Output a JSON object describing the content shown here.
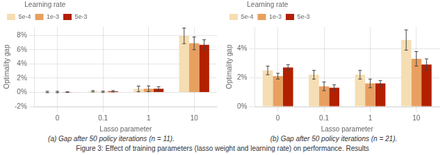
{
  "chart_data": [
    {
      "type": "bar",
      "subtitle": "(a) Gap after 50 policy iterations (n = 11).",
      "xlabel": "Lasso parameter",
      "ylabel": "Optimality gap",
      "categories": [
        "0",
        "0.1",
        "1",
        "10"
      ],
      "series": [
        {
          "name": "5e-4",
          "color": "#F5DEB3",
          "values": [
            0.0005,
            0.0015,
            0.0048,
            0.0795
          ],
          "errors": [
            0.001,
            0.001,
            0.004,
            0.011
          ]
        },
        {
          "name": "1e-3",
          "color": "#E8A060",
          "values": [
            0.0005,
            0.0008,
            0.005,
            0.069
          ],
          "errors": [
            0.001,
            0.001,
            0.004,
            0.009
          ]
        },
        {
          "name": "5e-3",
          "color": "#B22000",
          "values": [
            0.0003,
            0.0015,
            0.005,
            0.067
          ],
          "errors": [
            0.0005,
            0.001,
            0.003,
            0.007
          ]
        }
      ],
      "ylim": [
        -0.02,
        0.092
      ],
      "yticks": [
        {
          "value": -0.02,
          "label": "-2%"
        },
        {
          "value": 0.0,
          "label": "0%"
        },
        {
          "value": 0.02,
          "label": "2%"
        },
        {
          "value": 0.04,
          "label": "4%"
        },
        {
          "value": 0.06,
          "label": "6%"
        },
        {
          "value": 0.08,
          "label": "8%"
        }
      ],
      "grid": true,
      "legend": "upper left",
      "legend_title": "Learning rate"
    },
    {
      "type": "bar",
      "subtitle": "(b) Gap after 50 policy iterations (n = 21).",
      "xlabel": "Lasso parameter",
      "ylabel": "Optimality gap",
      "categories": [
        "0",
        "0.1",
        "1",
        "10"
      ],
      "series": [
        {
          "name": "5e-4",
          "color": "#F5DEB3",
          "values": [
            0.025,
            0.022,
            0.022,
            0.046
          ],
          "errors": [
            0.003,
            0.003,
            0.003,
            0.007
          ]
        },
        {
          "name": "1e-3",
          "color": "#E8A060",
          "values": [
            0.021,
            0.014,
            0.016,
            0.033
          ],
          "errors": [
            0.002,
            0.003,
            0.003,
            0.005
          ]
        },
        {
          "name": "5e-3",
          "color": "#B22000",
          "values": [
            0.027,
            0.013,
            0.016,
            0.029
          ],
          "errors": [
            0.002,
            0.002,
            0.002,
            0.004
          ]
        }
      ],
      "ylim": [
        0.0,
        0.055
      ],
      "yticks": [
        {
          "value": 0.0,
          "label": "0%"
        },
        {
          "value": 0.02,
          "label": "2%"
        },
        {
          "value": 0.04,
          "label": "4%"
        }
      ],
      "grid": true,
      "legend": "upper left",
      "legend_title": "Learning rate"
    }
  ],
  "caption": "Figure 3: Effect of training parameters (lasso weight and learning rate) on performance. Results"
}
